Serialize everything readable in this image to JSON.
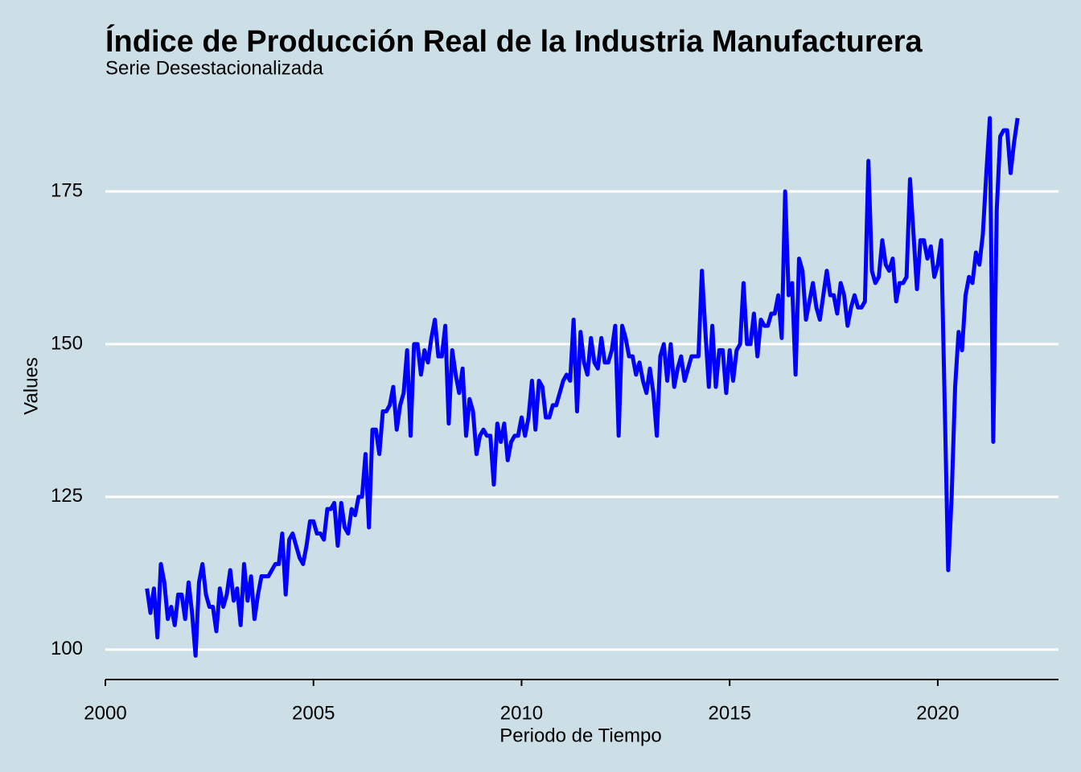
{
  "chart_data": {
    "type": "line",
    "title": "Índice de Producción Real de la Industria Manufacturera",
    "subtitle": "Serie Desestacionalizada",
    "x_label": "Periodo de Tiempo",
    "y_label": "Values",
    "xlim": [
      2000,
      2022.9
    ],
    "xticks": [
      2000,
      2005,
      2010,
      2015,
      2020
    ],
    "ylim": [
      95.1,
      187.9
    ],
    "yticks": [
      100,
      125,
      150,
      175
    ],
    "grid": true,
    "x": [
      2001,
      2001.083,
      2001.167,
      2001.25,
      2001.333,
      2001.417,
      2001.5,
      2001.583,
      2001.667,
      2001.75,
      2001.833,
      2001.917,
      2002,
      2002.083,
      2002.167,
      2002.25,
      2002.333,
      2002.417,
      2002.5,
      2002.583,
      2002.667,
      2002.75,
      2002.833,
      2002.917,
      2003,
      2003.083,
      2003.167,
      2003.25,
      2003.333,
      2003.417,
      2003.5,
      2003.583,
      2003.667,
      2003.75,
      2003.833,
      2003.917,
      2004,
      2004.083,
      2004.167,
      2004.25,
      2004.333,
      2004.417,
      2004.5,
      2004.583,
      2004.667,
      2004.75,
      2004.833,
      2004.917,
      2005,
      2005.083,
      2005.167,
      2005.25,
      2005.333,
      2005.417,
      2005.5,
      2005.583,
      2005.667,
      2005.75,
      2005.833,
      2005.917,
      2006,
      2006.083,
      2006.167,
      2006.25,
      2006.333,
      2006.417,
      2006.5,
      2006.583,
      2006.667,
      2006.75,
      2006.833,
      2006.917,
      2007,
      2007.083,
      2007.167,
      2007.25,
      2007.333,
      2007.417,
      2007.5,
      2007.583,
      2007.667,
      2007.75,
      2007.833,
      2007.917,
      2008,
      2008.083,
      2008.167,
      2008.25,
      2008.333,
      2008.417,
      2008.5,
      2008.583,
      2008.667,
      2008.75,
      2008.833,
      2008.917,
      2009,
      2009.083,
      2009.167,
      2009.25,
      2009.333,
      2009.417,
      2009.5,
      2009.583,
      2009.667,
      2009.75,
      2009.833,
      2009.917,
      2010,
      2010.083,
      2010.167,
      2010.25,
      2010.333,
      2010.417,
      2010.5,
      2010.583,
      2010.667,
      2010.75,
      2010.833,
      2010.917,
      2011,
      2011.083,
      2011.167,
      2011.25,
      2011.333,
      2011.417,
      2011.5,
      2011.583,
      2011.667,
      2011.75,
      2011.833,
      2011.917,
      2012,
      2012.083,
      2012.167,
      2012.25,
      2012.333,
      2012.417,
      2012.5,
      2012.583,
      2012.667,
      2012.75,
      2012.833,
      2012.917,
      2013,
      2013.083,
      2013.167,
      2013.25,
      2013.333,
      2013.417,
      2013.5,
      2013.583,
      2013.667,
      2013.75,
      2013.833,
      2013.917,
      2014,
      2014.083,
      2014.167,
      2014.25,
      2014.333,
      2014.417,
      2014.5,
      2014.583,
      2014.667,
      2014.75,
      2014.833,
      2014.917,
      2015,
      2015.083,
      2015.167,
      2015.25,
      2015.333,
      2015.417,
      2015.5,
      2015.583,
      2015.667,
      2015.75,
      2015.833,
      2015.917,
      2016,
      2016.083,
      2016.167,
      2016.25,
      2016.333,
      2016.417,
      2016.5,
      2016.583,
      2016.667,
      2016.75,
      2016.833,
      2016.917,
      2017,
      2017.083,
      2017.167,
      2017.25,
      2017.333,
      2017.417,
      2017.5,
      2017.583,
      2017.667,
      2017.75,
      2017.833,
      2017.917,
      2018,
      2018.083,
      2018.167,
      2018.25,
      2018.333,
      2018.417,
      2018.5,
      2018.583,
      2018.667,
      2018.75,
      2018.833,
      2018.917,
      2019,
      2019.083,
      2019.167,
      2019.25,
      2019.333,
      2019.417,
      2019.5,
      2019.583,
      2019.667,
      2019.75,
      2019.833,
      2019.917,
      2020,
      2020.083,
      2020.167,
      2020.25,
      2020.333,
      2020.417,
      2020.5,
      2020.583,
      2020.667,
      2020.75,
      2020.833,
      2020.917,
      2021,
      2021.083,
      2021.167,
      2021.25,
      2021.333,
      2021.417,
      2021.5,
      2021.583,
      2021.667,
      2021.75,
      2021.833,
      2021.917
    ],
    "series": [
      {
        "color": "#0000ff",
        "values": [
          110,
          106,
          110,
          102,
          114,
          111,
          105,
          107,
          104,
          109,
          109,
          105,
          111,
          106,
          99,
          111,
          114,
          109,
          107,
          107,
          103,
          110,
          107,
          109,
          113,
          108,
          110,
          104,
          114,
          108,
          112,
          105,
          109,
          112,
          112,
          112,
          113,
          114,
          114,
          119,
          109,
          118,
          119,
          117,
          115,
          114,
          117,
          121,
          121,
          119,
          119,
          118,
          123,
          123,
          124,
          117,
          124,
          120,
          119,
          123,
          122,
          125,
          125,
          132,
          120,
          136,
          136,
          132,
          139,
          139,
          140,
          143,
          136,
          140,
          142,
          149,
          135,
          150,
          150,
          145,
          149,
          147,
          151,
          154,
          148,
          148,
          153,
          137,
          149,
          145,
          142,
          146,
          135,
          141,
          139,
          132,
          135,
          136,
          135,
          135,
          127,
          137,
          134,
          137,
          131,
          134,
          135,
          135,
          138,
          135,
          138,
          144,
          136,
          144,
          143,
          138,
          138,
          140,
          140,
          142,
          144,
          145,
          144,
          154,
          139,
          152,
          147,
          145,
          151,
          147,
          146,
          151,
          147,
          147,
          149,
          153,
          135,
          153,
          151,
          148,
          148,
          145,
          147,
          144,
          142,
          146,
          142,
          135,
          148,
          150,
          144,
          150,
          143,
          146,
          148,
          144,
          146,
          148,
          148,
          148,
          162,
          152,
          143,
          153,
          143,
          149,
          149,
          142,
          149,
          144,
          149,
          150,
          160,
          150,
          150,
          155,
          148,
          154,
          153,
          153,
          155,
          155,
          158,
          151,
          175,
          158,
          160,
          145,
          164,
          162,
          154,
          157,
          160,
          156,
          154,
          158,
          162,
          158,
          158,
          155,
          160,
          158,
          153,
          156,
          158,
          156,
          156,
          157,
          180,
          162,
          160,
          161,
          167,
          163,
          162,
          164,
          157,
          160,
          160,
          161,
          177,
          168,
          159,
          167,
          167,
          164,
          166,
          161,
          163,
          167,
          140,
          113,
          125,
          143,
          152,
          149,
          158,
          161,
          160,
          165,
          163,
          168,
          178,
          187,
          134,
          172,
          184,
          185,
          185,
          178,
          183,
          187
        ]
      }
    ]
  }
}
